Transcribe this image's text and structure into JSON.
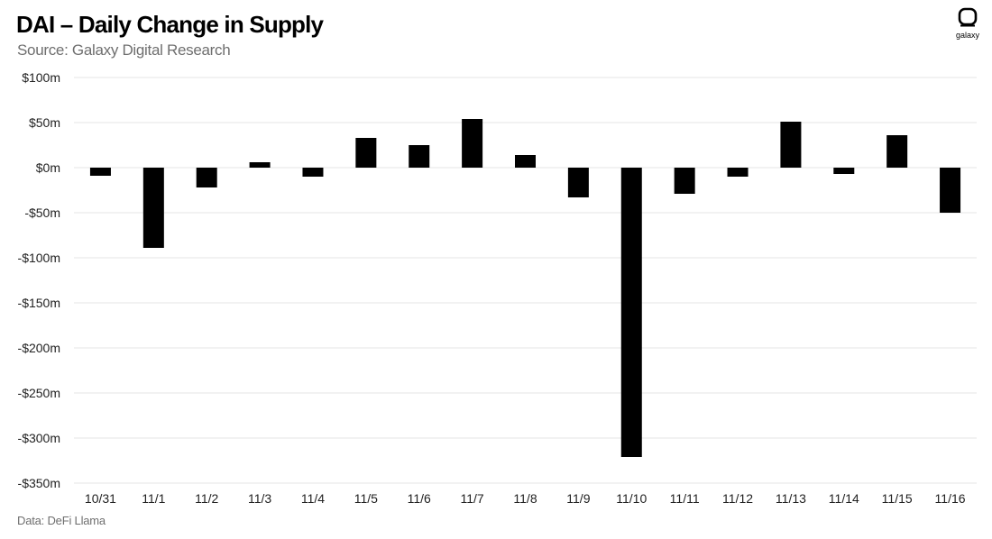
{
  "header": {
    "title": "DAI – Daily Change in Supply",
    "subtitle": "Source: Galaxy Digital Research"
  },
  "footer": {
    "source_note": "Data: DeFi Llama"
  },
  "logo": {
    "wordmark": "galaxy",
    "icon": "galaxy-logo-icon"
  },
  "colors": {
    "bar": "#000000",
    "grid": "#e6e6e6",
    "text_muted": "#6f6f6f"
  },
  "chart_data": {
    "type": "bar",
    "title": "DAI – Daily Change in Supply",
    "xlabel": "",
    "ylabel": "",
    "categories": [
      "10/31",
      "11/1",
      "11/2",
      "11/3",
      "11/4",
      "11/5",
      "11/6",
      "11/7",
      "11/8",
      "11/9",
      "11/10",
      "11/11",
      "11/12",
      "11/13",
      "11/14",
      "11/15",
      "11/16"
    ],
    "values": [
      -9,
      -89,
      -22,
      6,
      -10,
      33,
      25,
      54,
      14,
      -33,
      -321,
      -29,
      -10,
      51,
      -7,
      36,
      -50
    ],
    "unit": "$m",
    "ylim": [
      -350,
      100
    ],
    "yticks": [
      100,
      50,
      0,
      -50,
      -100,
      -150,
      -200,
      -250,
      -300,
      -350
    ],
    "ytick_labels": [
      "$100m",
      "$50m",
      "$0m",
      "-$50m",
      "-$100m",
      "-$150m",
      "-$200m",
      "-$250m",
      "-$300m",
      "-$350m"
    ],
    "grid": true,
    "legend": "none"
  }
}
